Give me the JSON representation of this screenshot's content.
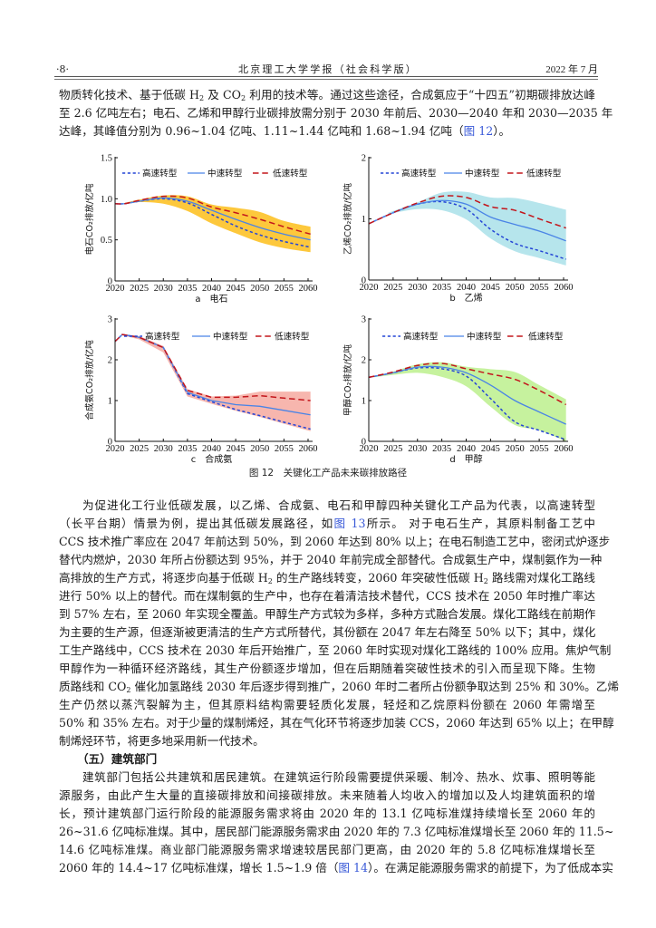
{
  "header": {
    "page_number": "·8·",
    "journal": "北京理工大学学报（社会科学版）",
    "issue": "2022 年 7 月"
  },
  "body": {
    "paragraph_1": {
      "lines": [
        [
          "物质转化技术、基于低碳 H",
          {
            "sub": "2"
          },
          " 及 CO",
          {
            "sub": "2"
          },
          " 利用的技术等。通过这些途径，合成氨应于“十四五”初期碳排放达峰"
        ],
        [
          "至 2.6 亿吨左右；电石、乙烯和甲醇行业碳排放需分别于 2030 年前后、2030—2040 年和 2030—2035 年"
        ],
        [
          "达峰，其峰值分别为 0.96~1.04 亿吨、1.11~1.44 亿吨和 1.68~1.94 亿吨（",
          {
            "link": "图 12"
          },
          "）。"
        ]
      ]
    },
    "figure_caption": "图 12　关键化工产品未来碳排放路径",
    "paragraph_2": {
      "lines": [
        [
          "为促进化工行业低碳发展，以乙烯、合成氨、电石和甲醇四种关键化工产品为代表，以高速转型"
        ],
        [
          "（长平台期）情景为例，提出其低碳发展路径，如",
          {
            "link": "图 13"
          },
          "所示。 对于电石生产，其原料制备工艺中"
        ],
        [
          "CCS 技术推广率应在 2047 年前达到 50%，到 2060 年达到 80% 以上；在电石制造工艺中，密闭式炉逐步"
        ],
        [
          "替代内燃炉，2030 年所占份额达到 95%，并于 2040 年前完成全部替代。合成氨生产中，煤制氨作为一种"
        ],
        [
          "高排放的生产方式，将逐步向基于低碳 H",
          {
            "sub": "2"
          },
          " 的生产路线转变，2060 年突破性低碳 H",
          {
            "sub": "2"
          },
          " 路线需对煤化工路线"
        ],
        [
          "进行 50% 以上的替代。而在煤制氨的生产中，也存在着清洁技术替代，CCS 技术在 2050 年时推广率达"
        ],
        [
          "到 57% 左右，至 2060 年实现全覆盖。甲醇生产方式较为多样，多种方式融合发展。煤化工路线在前期作"
        ],
        [
          "为主要的生产源，但逐渐被更清洁的生产方式所替代，其份额在 2047 年左右降至 50% 以下；其中，煤化"
        ],
        [
          "工生产路线中，CCS 技术在 2030 年后开始推广，至 2060 年时实现对煤化工路线的 100% 应用。焦炉气制"
        ],
        [
          "甲醇作为一种循环经济路线，其生产份额逐步增加，但在后期随着突破性技术的引入而呈现下降。生物"
        ],
        [
          "质路线和 CO",
          {
            "sub": "2"
          },
          " 催化加氢路线 2030 年后逐步得到推广，2060 年时二者所占份额争取达到 25% 和 30%。乙烯"
        ],
        [
          "生产仍然以蒸汽裂解为主，但其原料结构需要轻质化发展，轻烃和乙烷原料份额在 2060 年需增至"
        ],
        [
          "50% 和 35% 左右。对于少量的煤制烯烃，其在气化环节将逐步加装 CCS，2060 年达到 65% 以上；在甲醇"
        ],
        [
          "制烯烃环节，将更多地采用新一代技术。"
        ]
      ]
    },
    "section_heading": "（五）建筑部门",
    "paragraph_3": {
      "lines": [
        [
          "建筑部门包括公共建筑和居民建筑。在建筑运行阶段需要提供采暖、制冷、热水、炊事、照明等能"
        ],
        [
          "源服务，由此产生大量的直接碳排放和间接碳排放。未来随着人均收入的增加以及人均建筑面积的增"
        ],
        [
          "长，预计建筑部门运行阶段的能源服务需求将由 2020 年的 13.1 亿吨标准煤持续增长至 2060 年的"
        ],
        [
          "26~31.6 亿吨标准煤。其中，居民部门能源服务需求由 2020 年的 7.3 亿吨标准煤增长至 2060 年的 11.5~"
        ],
        [
          "14.6 亿吨标准煤。商业部门能源服务需求增速较居民部门更高，由 2020 年的 5.8 亿吨标准煤增长至"
        ],
        [
          "2060 年的 14.4~17 亿吨标准煤，增长 1.5~1.9 倍（",
          {
            "link": "图 14"
          },
          "）。在满足能源服务需求的前提下，为了低成本实"
        ]
      ]
    }
  },
  "chart_data": [
    {
      "type": "line",
      "title": "a　电石",
      "xlabel": "",
      "ylabel": "电石CO₂排放/亿吨",
      "xlim": [
        2020,
        2060
      ],
      "ylim": [
        0,
        1.5
      ],
      "xticks": [
        2020,
        2025,
        2030,
        2035,
        2040,
        2045,
        2050,
        2055,
        2060
      ],
      "xtick_labels": [
        "2020",
        "2025",
        "2030",
        "2035",
        "2040",
        "2045",
        "2050",
        "2055",
        "2060"
      ],
      "yticks": [
        0,
        0.5,
        1.0,
        1.5
      ],
      "ytick_labels": [
        "0",
        "0.5",
        "1.0",
        "1.5"
      ],
      "grid": false,
      "legend_position": "top",
      "smooth": true,
      "band": {
        "color": "#fdc83c",
        "x": [
          2022,
          2025,
          2030,
          2035,
          2040,
          2045,
          2050,
          2055,
          2060.5
        ],
        "upper": [
          0.95,
          0.99,
          1.04,
          1.03,
          0.93,
          0.89,
          0.84,
          0.73,
          0.66
        ],
        "lower": [
          0.94,
          0.96,
          0.94,
          0.85,
          0.7,
          0.58,
          0.47,
          0.4,
          0.35
        ]
      },
      "series": [
        {
          "name": "高速转型",
          "style": "dashed-short",
          "color": "#2445d6",
          "x": [
            2020,
            2022,
            2025,
            2030,
            2035,
            2040,
            2045,
            2050,
            2055,
            2060.5
          ],
          "values": [
            0.94,
            0.94,
            0.97,
            1.0,
            0.95,
            0.81,
            0.67,
            0.56,
            0.48,
            0.41
          ]
        },
        {
          "name": "中速转型",
          "style": "solid",
          "color": "#4a84e6",
          "x": [
            2020,
            2022,
            2025,
            2030,
            2035,
            2040,
            2045,
            2050,
            2055,
            2060.5
          ],
          "values": [
            0.94,
            0.94,
            0.97,
            1.01,
            0.97,
            0.86,
            0.75,
            0.65,
            0.57,
            0.5
          ]
        },
        {
          "name": "低速转型",
          "style": "dashed-long",
          "color": "#c3161c",
          "x": [
            2020,
            2022,
            2025,
            2030,
            2035,
            2040,
            2045,
            2050,
            2055,
            2060.5
          ],
          "values": [
            0.94,
            0.94,
            0.98,
            1.03,
            1.01,
            0.9,
            0.83,
            0.75,
            0.66,
            0.57
          ]
        }
      ]
    },
    {
      "type": "line",
      "title": "b　乙烯",
      "xlabel": "",
      "ylabel": "乙烯CO₂排放/亿吨",
      "xlim": [
        2020,
        2060
      ],
      "ylim": [
        0,
        2
      ],
      "xticks": [
        2020,
        2025,
        2030,
        2035,
        2040,
        2045,
        2050,
        2055,
        2060
      ],
      "xtick_labels": [
        "2020",
        "2025",
        "2030",
        "2035",
        "2040",
        "2045",
        "2050",
        "2055",
        "2060"
      ],
      "yticks": [
        0,
        1,
        2
      ],
      "ytick_labels": [
        "0",
        "1",
        "2"
      ],
      "grid": false,
      "legend_position": "top",
      "smooth": true,
      "band": {
        "color": "#b6e5ec",
        "x": [
          2024,
          2030,
          2035,
          2040,
          2045,
          2050,
          2055,
          2060.5
        ],
        "upper": [
          1.1,
          1.27,
          1.43,
          1.44,
          1.35,
          1.34,
          1.26,
          1.15
        ],
        "lower": [
          1.08,
          1.16,
          1.14,
          0.99,
          0.68,
          0.47,
          0.36,
          0.24
        ]
      },
      "series": [
        {
          "name": "高速转型",
          "style": "dashed-short",
          "color": "#2445d6",
          "x": [
            2020,
            2025,
            2030,
            2035,
            2040,
            2045,
            2050,
            2055,
            2060.5
          ],
          "values": [
            0.92,
            1.1,
            1.24,
            1.28,
            1.16,
            0.83,
            0.6,
            0.48,
            0.34
          ]
        },
        {
          "name": "中速转型",
          "style": "solid",
          "color": "#4a84e6",
          "x": [
            2020,
            2025,
            2030,
            2035,
            2040,
            2045,
            2050,
            2055,
            2060.5
          ],
          "values": [
            0.92,
            1.1,
            1.24,
            1.3,
            1.24,
            1.03,
            0.91,
            0.8,
            0.64
          ]
        },
        {
          "name": "低速转型",
          "style": "dashed-long",
          "color": "#c3161c",
          "x": [
            2020,
            2025,
            2030,
            2035,
            2040,
            2045,
            2050,
            2055,
            2060.5
          ],
          "values": [
            0.92,
            1.1,
            1.26,
            1.37,
            1.35,
            1.2,
            1.14,
            1.0,
            0.85
          ]
        }
      ]
    },
    {
      "type": "line",
      "title": "c　合成氨",
      "xlabel": "",
      "ylabel": "合成氨CO₂排放/亿吨",
      "xlim": [
        2020,
        2060
      ],
      "ylim": [
        0,
        3
      ],
      "xticks": [
        2020,
        2025,
        2030,
        2035,
        2040,
        2045,
        2050,
        2055,
        2060
      ],
      "xtick_labels": [
        "2020",
        "2025",
        "2030",
        "2035",
        "2040",
        "2045",
        "2050",
        "2055",
        "2060"
      ],
      "yticks": [
        0,
        1,
        2,
        3
      ],
      "ytick_labels": [
        "0",
        "1",
        "2",
        "3"
      ],
      "grid": false,
      "legend_position": "top",
      "smooth": false,
      "band": {
        "color": "#f7b6ae",
        "x": [
          2021.5,
          2025,
          2030,
          2035,
          2040,
          2045,
          2050,
          2055,
          2060.5
        ],
        "upper": [
          2.63,
          2.58,
          2.34,
          1.28,
          1.1,
          1.12,
          1.22,
          1.22,
          1.22
        ],
        "lower": [
          2.6,
          2.5,
          2.18,
          1.1,
          0.92,
          0.75,
          0.6,
          0.43,
          0.25
        ]
      },
      "series": [
        {
          "name": "高速转型",
          "style": "dashed-short",
          "color": "#2445d6",
          "x": [
            2020,
            2021.5,
            2025,
            2030,
            2035,
            2040,
            2045,
            2050,
            2055,
            2060.5
          ],
          "values": [
            2.45,
            2.62,
            2.55,
            2.3,
            1.17,
            0.97,
            0.78,
            0.63,
            0.47,
            0.3
          ]
        },
        {
          "name": "中速转型",
          "style": "solid",
          "color": "#4a84e6",
          "x": [
            2020,
            2021.5,
            2025,
            2030,
            2035,
            2040,
            2045,
            2050,
            2055,
            2060.5
          ],
          "values": [
            2.45,
            2.62,
            2.55,
            2.3,
            1.2,
            1.0,
            0.9,
            0.86,
            0.76,
            0.65
          ]
        },
        {
          "name": "低速转型",
          "style": "dashed-long",
          "color": "#c3161c",
          "x": [
            2020,
            2021.5,
            2025,
            2030,
            2035,
            2040,
            2045,
            2050,
            2055,
            2060.5
          ],
          "values": [
            2.45,
            2.62,
            2.55,
            2.3,
            1.25,
            1.08,
            1.08,
            1.12,
            1.06,
            1.0
          ]
        }
      ]
    },
    {
      "type": "line",
      "title": "d　甲醇",
      "xlabel": "",
      "ylabel": "甲醇CO₂排放/亿吨",
      "xlim": [
        2020,
        2060
      ],
      "ylim": [
        0,
        3
      ],
      "xticks": [
        2020,
        2025,
        2030,
        2035,
        2040,
        2045,
        2050,
        2055,
        2060
      ],
      "xtick_labels": [
        "2020",
        "2025",
        "2030",
        "2035",
        "2040",
        "2045",
        "2050",
        "2055",
        "2060"
      ],
      "yticks": [
        0,
        1,
        2,
        3
      ],
      "ytick_labels": [
        "0",
        "1",
        "2",
        "3"
      ],
      "grid": false,
      "legend_position": "top",
      "smooth": true,
      "band": {
        "color": "#c6f29e",
        "x": [
          2021,
          2025,
          2030,
          2035,
          2040,
          2045,
          2050,
          2055,
          2060.5
        ],
        "upper": [
          1.58,
          1.71,
          1.89,
          1.94,
          1.83,
          1.77,
          1.7,
          1.38,
          1.03
        ],
        "lower": [
          1.57,
          1.63,
          1.68,
          1.58,
          1.35,
          0.85,
          0.4,
          0.27,
          0.0
        ]
      },
      "series": [
        {
          "name": "高速转型",
          "style": "dashed-short",
          "color": "#2445d6",
          "x": [
            2020,
            2025,
            2030,
            2035,
            2040,
            2045,
            2050,
            2055,
            2060.5
          ],
          "values": [
            1.57,
            1.68,
            1.8,
            1.78,
            1.6,
            1.05,
            0.48,
            0.27,
            0.04
          ]
        },
        {
          "name": "中速转型",
          "style": "solid",
          "color": "#4a84e6",
          "x": [
            2020,
            2025,
            2030,
            2035,
            2040,
            2045,
            2050,
            2055,
            2060.5
          ],
          "values": [
            1.57,
            1.68,
            1.82,
            1.82,
            1.68,
            1.38,
            1.0,
            0.72,
            0.42
          ]
        },
        {
          "name": "低速转型",
          "style": "dashed-long",
          "color": "#c3161c",
          "x": [
            2020,
            2025,
            2030,
            2035,
            2040,
            2045,
            2050,
            2055,
            2060.5
          ],
          "values": [
            1.57,
            1.7,
            1.86,
            1.91,
            1.78,
            1.65,
            1.52,
            1.25,
            0.9
          ]
        }
      ]
    }
  ]
}
